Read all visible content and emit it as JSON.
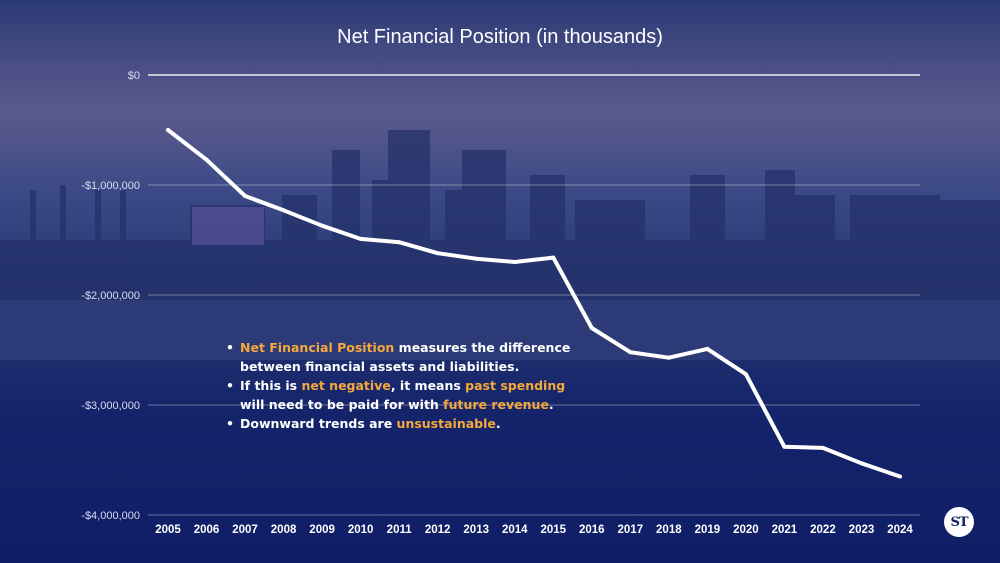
{
  "chart_data": {
    "type": "line",
    "title": "Net Financial Position (in thousands)",
    "xlabel": "",
    "ylabel": "",
    "x": [
      "2005",
      "2006",
      "2007",
      "2008",
      "2009",
      "2010",
      "2011",
      "2012",
      "2013",
      "2014",
      "2015",
      "2016",
      "2017",
      "2018",
      "2019",
      "2020",
      "2021",
      "2022",
      "2023",
      "2024"
    ],
    "series": [
      {
        "values": [
          -500000,
          -770000,
          -1100000,
          -1230000,
          -1370000,
          -1490000,
          -1520000,
          -1620000,
          -1670000,
          -1700000,
          -1660000,
          -2300000,
          -2520000,
          -2570000,
          -2490000,
          -2720000,
          -3380000,
          -3390000,
          -3530000,
          -3650000
        ]
      }
    ],
    "y_ticks": [
      "$0",
      "-$1,000,000",
      "-$2,000,000",
      "-$3,000,000",
      "-$4,000,000"
    ],
    "y_tick_values": [
      0,
      -1000000,
      -2000000,
      -3000000,
      -4000000
    ],
    "ylim": [
      -4000000,
      0
    ],
    "grid": true,
    "line_color": "#ffffff",
    "gridline_color": "#d9d9d9"
  },
  "notes": {
    "item1": {
      "highlight": "Net Financial Position",
      "text": " measures the difference between financial assets and liabilities."
    },
    "item2": {
      "pre": "If this is ",
      "hl1": "net negative",
      "mid": ", it means ",
      "hl2": "past spending",
      "mid2": " will need to be paid for with ",
      "hl3": "future revenue",
      "post": "."
    },
    "item3": {
      "pre": "Downward trends are ",
      "hl": "unsustainable",
      "post": "."
    },
    "highlight_color": "#f5a93b"
  },
  "logo": {
    "text": "ST"
  }
}
